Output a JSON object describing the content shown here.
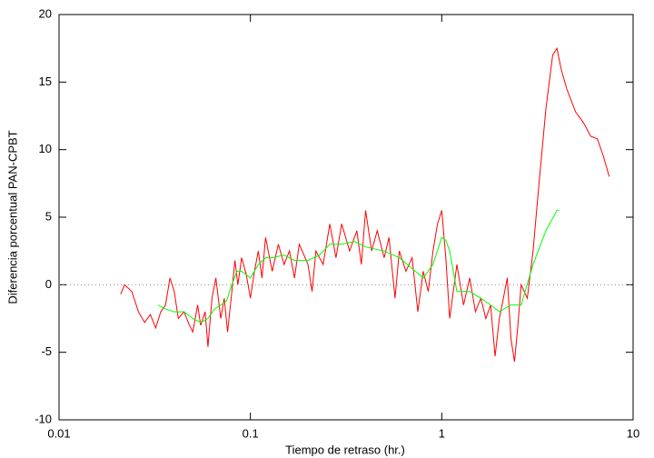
{
  "chart_data": {
    "type": "line",
    "x_label": "Tiempo de retraso (hr.)",
    "y_label": "Diferencia porcentual PAN-CPBT",
    "xscale": "log",
    "xlim": [
      0.01,
      10
    ],
    "xticks": [
      0.01,
      0.1,
      1,
      10
    ],
    "ylim": [
      -10,
      20
    ],
    "yticks": [
      -10,
      -5,
      0,
      5,
      10,
      15,
      20
    ],
    "zero_line": true,
    "series": [
      {
        "color": "#ff0000",
        "x": [
          0.021,
          0.022,
          0.024,
          0.026,
          0.028,
          0.03,
          0.032,
          0.034,
          0.036,
          0.038,
          0.04,
          0.042,
          0.045,
          0.048,
          0.05,
          0.053,
          0.055,
          0.058,
          0.06,
          0.063,
          0.066,
          0.07,
          0.073,
          0.076,
          0.08,
          0.083,
          0.086,
          0.09,
          0.095,
          0.1,
          0.105,
          0.11,
          0.115,
          0.12,
          0.13,
          0.14,
          0.15,
          0.16,
          0.17,
          0.18,
          0.2,
          0.21,
          0.22,
          0.24,
          0.26,
          0.28,
          0.3,
          0.33,
          0.36,
          0.38,
          0.4,
          0.43,
          0.46,
          0.5,
          0.53,
          0.57,
          0.6,
          0.65,
          0.7,
          0.75,
          0.8,
          0.85,
          0.9,
          0.95,
          1.0,
          1.05,
          1.1,
          1.2,
          1.3,
          1.4,
          1.5,
          1.6,
          1.7,
          1.8,
          1.9,
          2.0,
          2.1,
          2.2,
          2.3,
          2.4,
          2.5,
          2.6,
          2.8,
          3.0,
          3.2,
          3.5,
          3.8,
          4.0,
          4.2,
          4.5,
          5.0,
          5.5,
          6.0,
          6.5,
          7.0,
          7.5
        ],
        "values": [
          -0.7,
          0,
          -0.5,
          -2.0,
          -2.8,
          -2.2,
          -3.2,
          -2.0,
          -1.5,
          0.5,
          -0.5,
          -2.5,
          -2.0,
          -3.0,
          -3.5,
          -1.5,
          -3.0,
          -2.0,
          -4.6,
          -1.0,
          0.5,
          -2.5,
          -1.0,
          -3.5,
          -0.5,
          1.8,
          0.0,
          2.0,
          0.8,
          -1.0,
          1.0,
          2.5,
          0.5,
          3.5,
          1.0,
          3.0,
          1.5,
          2.5,
          0.5,
          3.0,
          1.5,
          -0.5,
          2.5,
          1.5,
          4.5,
          2.0,
          4.5,
          2.5,
          4.0,
          1.5,
          5.5,
          2.5,
          4.0,
          2.0,
          3.5,
          -1.0,
          2.5,
          1.0,
          2.0,
          -2.0,
          1.0,
          -0.5,
          2.5,
          4.5,
          5.5,
          2.0,
          -2.5,
          1.5,
          -1.5,
          0.5,
          -2.0,
          -1.0,
          -2.5,
          -1.5,
          -5.3,
          -2.5,
          -1.0,
          0.5,
          -4.0,
          -5.7,
          -3.0,
          0.0,
          -1.0,
          2.5,
          7.0,
          13.0,
          17.0,
          17.5,
          16.0,
          14.5,
          12.8,
          12.0,
          11.0,
          10.8,
          9.5,
          8.0
        ]
      },
      {
        "color": "#00ff00",
        "x": [
          0.033,
          0.036,
          0.04,
          0.045,
          0.05,
          0.055,
          0.06,
          0.065,
          0.07,
          0.075,
          0.08,
          0.085,
          0.09,
          0.1,
          0.11,
          0.12,
          0.13,
          0.15,
          0.17,
          0.2,
          0.23,
          0.26,
          0.3,
          0.35,
          0.4,
          0.5,
          0.6,
          0.7,
          0.8,
          0.9,
          1.0,
          1.05,
          1.1,
          1.2,
          1.4,
          1.6,
          1.8,
          2.0,
          2.3,
          2.6,
          3.0,
          3.5,
          4.0,
          4.1
        ],
        "values": [
          -1.5,
          -1.8,
          -2.0,
          -2.0,
          -2.5,
          -2.8,
          -2.5,
          -1.8,
          -1.5,
          -1.2,
          0.0,
          1.0,
          1.0,
          0.5,
          1.5,
          2.0,
          2.0,
          2.2,
          1.8,
          1.8,
          2.2,
          3.0,
          3.0,
          3.2,
          2.8,
          2.5,
          2.0,
          1.2,
          0.5,
          1.5,
          3.5,
          3.3,
          2.5,
          -0.5,
          -0.5,
          -1.0,
          -1.5,
          -2.0,
          -1.5,
          -1.5,
          1.5,
          4.0,
          5.5,
          5.5
        ]
      }
    ]
  }
}
